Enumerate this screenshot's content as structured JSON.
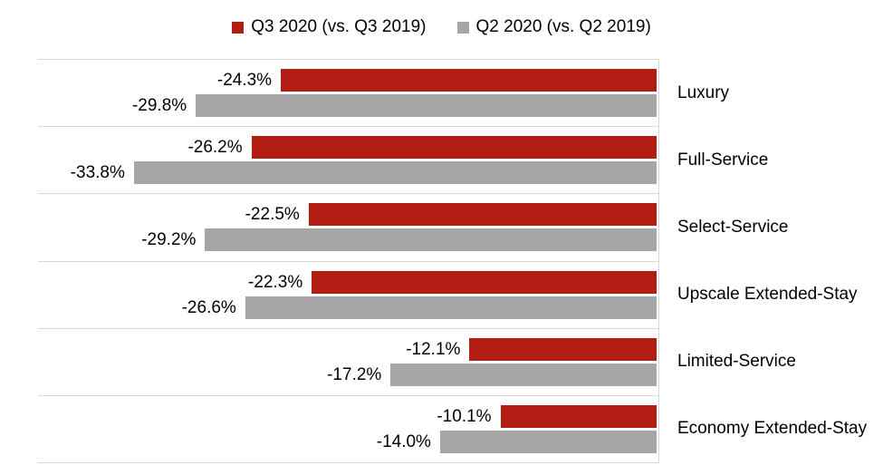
{
  "chart_data": {
    "type": "bar",
    "orientation": "horizontal",
    "title": "",
    "categories": [
      "Luxury",
      "Full-Service",
      "Select-Service",
      "Upscale Extended-Stay",
      "Limited-Service",
      "Economy Extended-Stay"
    ],
    "series": [
      {
        "name": "Q3 2020 (vs. Q3 2019)",
        "color": "#B21E14",
        "values": [
          -24.3,
          -26.2,
          -22.5,
          -22.3,
          -12.1,
          -10.1
        ],
        "labels": [
          "-24.3%",
          "-26.2%",
          "-22.5%",
          "-22.3%",
          "-12.1%",
          "-10.1%"
        ]
      },
      {
        "name": "Q2 2020 (vs. Q2 2019)",
        "color": "#A6A6A6",
        "values": [
          -29.8,
          -33.8,
          -29.2,
          -26.6,
          -17.2,
          -14.0
        ],
        "labels": [
          "-29.8%",
          "-33.8%",
          "-29.2%",
          "-26.6%",
          "-17.2%",
          "-14.0%"
        ]
      }
    ],
    "xlim": [
      -40,
      0
    ],
    "xlabel": "",
    "ylabel": "",
    "legend_position": "top",
    "grid": "horizontal-row-separators",
    "grid_color": "#D9D9D9",
    "data_labels_shown": true,
    "label_text_color": "#000000"
  }
}
